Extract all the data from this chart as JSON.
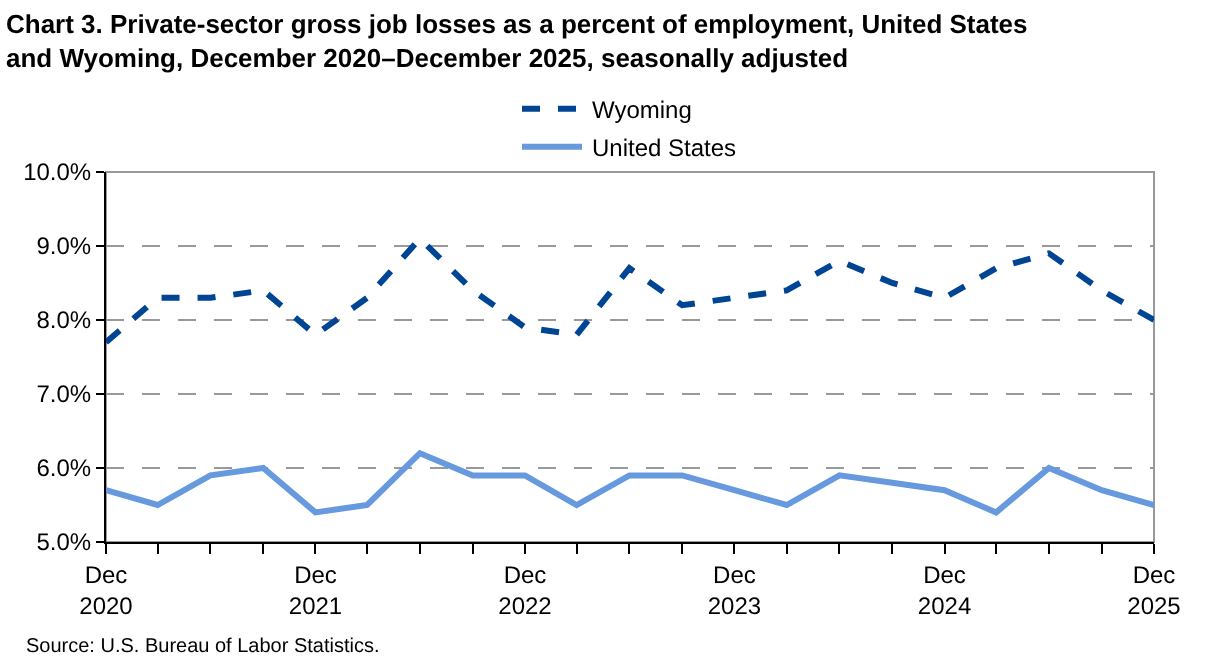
{
  "chart_data": {
    "type": "line",
    "title": "Chart 3. Private-sector gross job losses as a percent of employment, United States and Wyoming, December 2020–December 2025, seasonally adjusted",
    "x": [
      "2020-12",
      "2021-03",
      "2021-06",
      "2021-09",
      "2021-12",
      "2022-03",
      "2022-06",
      "2022-09",
      "2022-12",
      "2023-03",
      "2023-06",
      "2023-09",
      "2023-12",
      "2024-03",
      "2024-06",
      "2024-09",
      "2024-12",
      "2025-03",
      "2025-06",
      "2025-09",
      "2025-12"
    ],
    "series": [
      {
        "name": "Wyoming",
        "color": "#004494",
        "line_style": "dashed",
        "values": [
          7.7,
          8.3,
          8.3,
          8.4,
          7.8,
          8.3,
          9.1,
          8.4,
          7.9,
          7.8,
          8.7,
          8.2,
          8.3,
          8.4,
          8.8,
          8.5,
          8.3,
          8.7,
          8.9,
          8.4,
          8.0
        ]
      },
      {
        "name": "United States",
        "color": "#6699dd",
        "line_style": "solid",
        "values": [
          5.7,
          5.5,
          5.9,
          6.0,
          5.4,
          5.5,
          6.2,
          5.9,
          5.9,
          5.5,
          5.9,
          5.9,
          5.7,
          5.5,
          5.9,
          5.8,
          5.7,
          5.4,
          6.0,
          5.7,
          5.5
        ]
      }
    ],
    "xlim": [
      "2020-12",
      "2025-12"
    ],
    "xticks": [
      {
        "value": "2020-12",
        "label": "Dec\n2020"
      },
      {
        "value": "2021-03",
        "label": null
      },
      {
        "value": "2021-06",
        "label": null
      },
      {
        "value": "2021-09",
        "label": null
      },
      {
        "value": "2021-12",
        "label": "Dec\n2021"
      },
      {
        "value": "2022-03",
        "label": null
      },
      {
        "value": "2022-06",
        "label": null
      },
      {
        "value": "2022-09",
        "label": null
      },
      {
        "value": "2022-12",
        "label": "Dec\n2022"
      },
      {
        "value": "2023-03",
        "label": null
      },
      {
        "value": "2023-06",
        "label": null
      },
      {
        "value": "2023-09",
        "label": null
      },
      {
        "value": "2023-12",
        "label": "Dec\n2023"
      },
      {
        "value": "2024-03",
        "label": null
      },
      {
        "value": "2024-06",
        "label": null
      },
      {
        "value": "2024-09",
        "label": null
      },
      {
        "value": "2024-12",
        "label": "Dec\n2024"
      },
      {
        "value": "2025-03",
        "label": null
      },
      {
        "value": "2025-06",
        "label": null
      },
      {
        "value": "2025-09",
        "label": null
      },
      {
        "value": "2025-12",
        "label": "Dec\n2025"
      }
    ],
    "ylim": [
      5.0,
      10.0
    ],
    "yticks": [
      {
        "value": 5.0,
        "label": "5.0%"
      },
      {
        "value": 6.0,
        "label": "6.0%"
      },
      {
        "value": 7.0,
        "label": "7.0%"
      },
      {
        "value": 8.0,
        "label": "8.0%"
      },
      {
        "value": 9.0,
        "label": "9.0%"
      },
      {
        "value": 10.0,
        "label": "10.0%"
      }
    ],
    "grid": "y",
    "legend": "top",
    "marker": "none",
    "annotations": [
      "Source: U.S. Bureau of Labor Statistics."
    ]
  }
}
